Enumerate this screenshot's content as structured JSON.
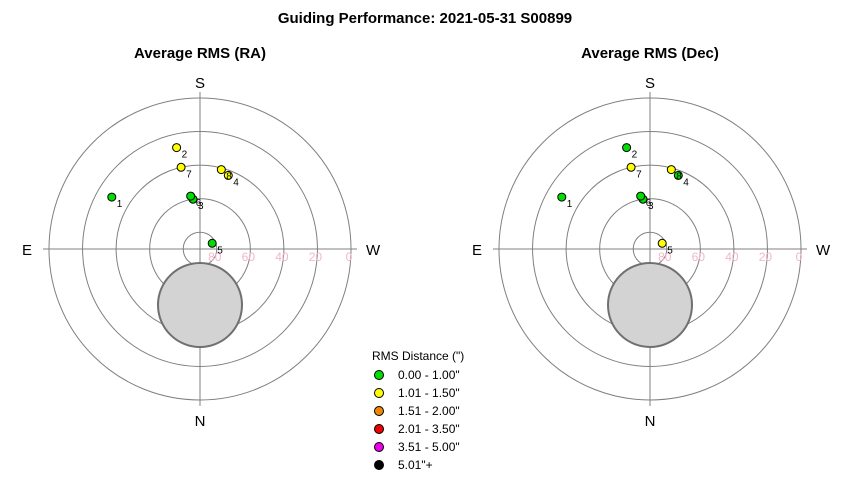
{
  "title": "Guiding Performance: 2021-05-31 S00899",
  "directions": {
    "top": "S",
    "bottom": "N",
    "left": "E",
    "right": "W"
  },
  "altitude_ticks": [
    "80",
    "60",
    "40",
    "20",
    "0"
  ],
  "legend": {
    "title": "RMS Distance (\")",
    "items": [
      {
        "label": "0.00 - 1.00\"",
        "color": "#00dd00"
      },
      {
        "label": "1.01 - 1.50\"",
        "color": "#ffff00"
      },
      {
        "label": "1.51 - 2.00\"",
        "color": "#ee8800"
      },
      {
        "label": "2.01 - 3.50\"",
        "color": "#ee0000"
      },
      {
        "label": "3.51 - 5.00\"",
        "color": "#ee00ee"
      },
      {
        "label": "5.01\"+",
        "color": "#000000"
      }
    ]
  },
  "chart_data": [
    {
      "type": "scatter",
      "projection": "polar-altaz",
      "title": "Average RMS (RA)",
      "radial_axis": "altitude (deg)",
      "radial_ticks": [
        80,
        60,
        40,
        20,
        0
      ],
      "points": [
        {
          "label": "1",
          "az": 120.5,
          "alt": 29.0,
          "color": "#00dd00"
        },
        {
          "label": "2",
          "az": 167.0,
          "alt": 28.0,
          "color": "#ffff00"
        },
        {
          "label": "3",
          "az": 172.0,
          "alt": 60.0,
          "color": "#00dd00"
        },
        {
          "label": "4",
          "az": 201.0,
          "alt": 43.0,
          "color": "#ffff00"
        },
        {
          "label": "5",
          "az": 245.0,
          "alt": 82.0,
          "color": "#00dd00"
        },
        {
          "label": "6",
          "az": 170.0,
          "alt": 58.0,
          "color": "#00dd00"
        },
        {
          "label": "7",
          "az": 167.0,
          "alt": 40.0,
          "color": "#ffff00"
        },
        {
          "label": "8",
          "az": 195.0,
          "alt": 41.0,
          "color": "#ffff00"
        }
      ]
    },
    {
      "type": "scatter",
      "projection": "polar-altaz",
      "title": "Average RMS (Dec)",
      "radial_axis": "altitude (deg)",
      "radial_ticks": [
        80,
        60,
        40,
        20,
        0
      ],
      "points": [
        {
          "label": "1",
          "az": 120.5,
          "alt": 29.0,
          "color": "#00dd00"
        },
        {
          "label": "2",
          "az": 167.0,
          "alt": 28.0,
          "color": "#00dd00"
        },
        {
          "label": "3",
          "az": 172.0,
          "alt": 60.0,
          "color": "#00dd00"
        },
        {
          "label": "4",
          "az": 201.0,
          "alt": 43.0,
          "color": "#00dd00"
        },
        {
          "label": "5",
          "az": 245.0,
          "alt": 82.0,
          "color": "#ffff00"
        },
        {
          "label": "6",
          "az": 170.0,
          "alt": 58.0,
          "color": "#00dd00"
        },
        {
          "label": "7",
          "az": 167.0,
          "alt": 40.0,
          "color": "#ffff00"
        },
        {
          "label": "8",
          "az": 195.0,
          "alt": 41.0,
          "color": "#ffff00"
        }
      ]
    }
  ]
}
